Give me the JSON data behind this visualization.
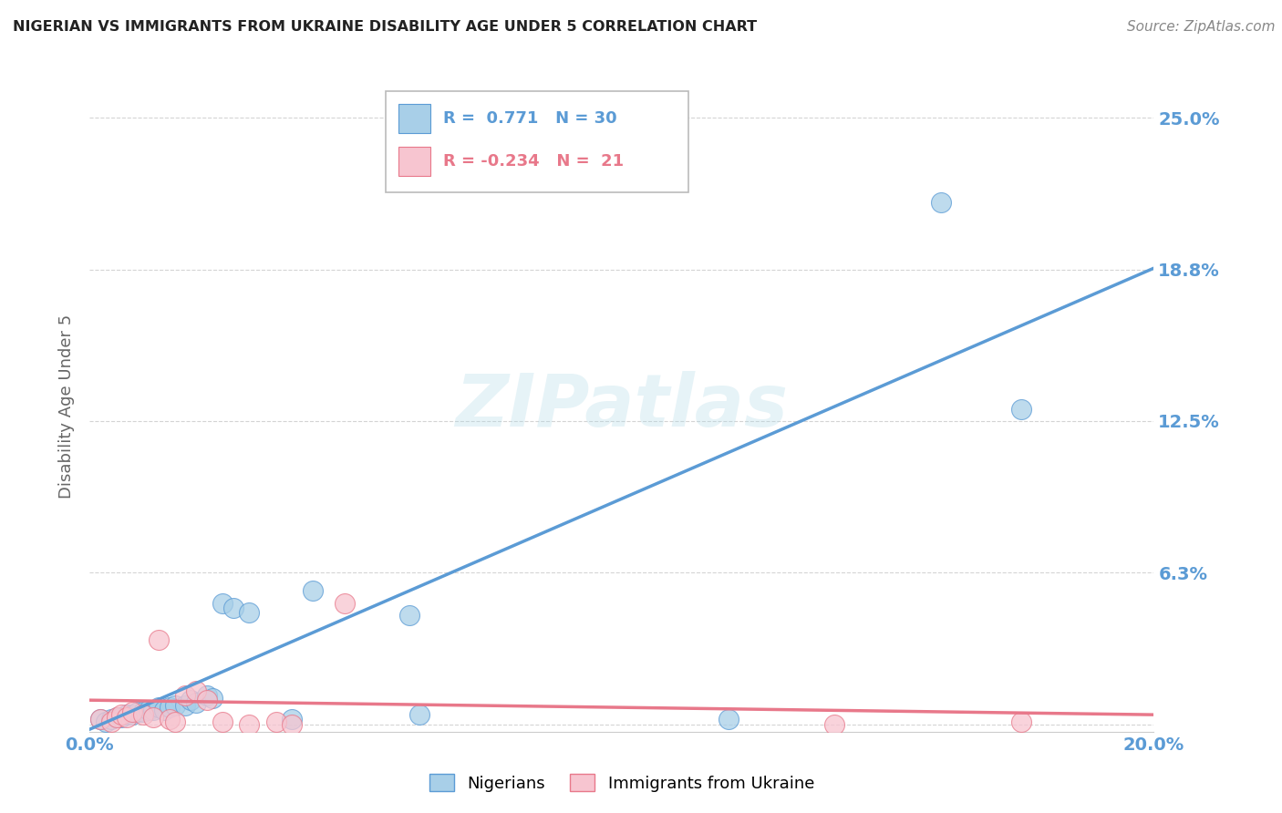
{
  "title": "NIGERIAN VS IMMIGRANTS FROM UKRAINE DISABILITY AGE UNDER 5 CORRELATION CHART",
  "source": "Source: ZipAtlas.com",
  "ylabel": "Disability Age Under 5",
  "xlim": [
    0.0,
    0.2
  ],
  "ylim": [
    -0.003,
    0.265
  ],
  "ytick_vals": [
    0.0,
    0.0625,
    0.125,
    0.1875,
    0.25
  ],
  "ytick_labels": [
    "",
    "6.3%",
    "12.5%",
    "18.8%",
    "25.0%"
  ],
  "xtick_vals": [
    0.0,
    0.04,
    0.08,
    0.12,
    0.16,
    0.2
  ],
  "xtick_labels": [
    "0.0%",
    "",
    "",
    "",
    "",
    "20.0%"
  ],
  "nigerian_R": 0.771,
  "nigerian_N": 30,
  "ukraine_R": -0.234,
  "ukraine_N": 21,
  "nigerian_color": "#a8cfe8",
  "ukraine_color": "#f7c5d0",
  "nigerian_edge_color": "#5b9bd5",
  "ukraine_edge_color": "#e8788a",
  "nigerian_line_color": "#5b9bd5",
  "ukraine_line_color": "#e8788a",
  "nigerian_scatter_x": [
    0.002,
    0.003,
    0.004,
    0.005,
    0.006,
    0.007,
    0.008,
    0.009,
    0.01,
    0.011,
    0.012,
    0.013,
    0.014,
    0.015,
    0.016,
    0.018,
    0.019,
    0.02,
    0.022,
    0.023,
    0.025,
    0.027,
    0.03,
    0.038,
    0.042,
    0.06,
    0.062,
    0.12,
    0.16,
    0.175
  ],
  "nigerian_scatter_y": [
    0.002,
    0.001,
    0.002,
    0.003,
    0.003,
    0.004,
    0.004,
    0.005,
    0.005,
    0.006,
    0.006,
    0.007,
    0.006,
    0.007,
    0.008,
    0.008,
    0.01,
    0.009,
    0.012,
    0.011,
    0.05,
    0.048,
    0.046,
    0.002,
    0.055,
    0.045,
    0.004,
    0.002,
    0.215,
    0.13
  ],
  "ukraine_scatter_x": [
    0.002,
    0.004,
    0.005,
    0.006,
    0.007,
    0.008,
    0.01,
    0.012,
    0.013,
    0.015,
    0.016,
    0.018,
    0.02,
    0.022,
    0.025,
    0.03,
    0.035,
    0.038,
    0.048,
    0.14,
    0.175
  ],
  "ukraine_scatter_y": [
    0.002,
    0.001,
    0.003,
    0.004,
    0.003,
    0.005,
    0.004,
    0.003,
    0.035,
    0.002,
    0.001,
    0.012,
    0.014,
    0.01,
    0.001,
    0.0,
    0.001,
    0.0,
    0.05,
    0.0,
    0.001
  ],
  "nig_line_x0": 0.0,
  "nig_line_y0": -0.002,
  "nig_line_x1": 0.2,
  "nig_line_y1": 0.188,
  "ukr_line_x0": 0.0,
  "ukr_line_y0": 0.01,
  "ukr_line_x1": 0.2,
  "ukr_line_y1": 0.004,
  "background_color": "#ffffff",
  "grid_color": "#d0d0d0",
  "watermark_text": "ZIPatlas",
  "tick_color": "#5b9bd5",
  "label_color": "#666666"
}
